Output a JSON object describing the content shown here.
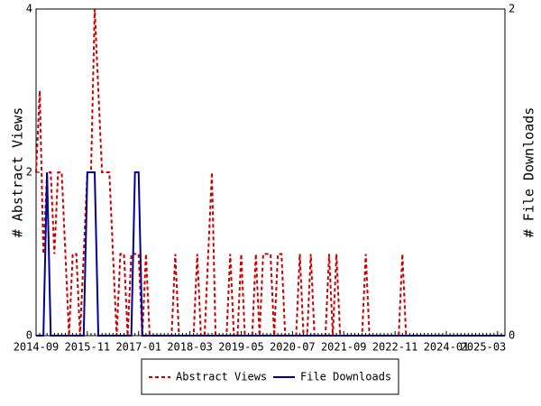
{
  "chart_data": {
    "type": "line",
    "x": [
      "2014-09",
      null,
      null,
      null,
      null,
      null,
      null,
      null,
      null,
      null,
      null,
      null,
      null,
      null,
      "2015-11",
      null,
      null,
      null,
      null,
      null,
      null,
      null,
      null,
      null,
      null,
      null,
      null,
      null,
      "2017-01",
      null,
      null,
      null,
      null,
      null,
      null,
      null,
      null,
      null,
      null,
      null,
      null,
      null,
      "2018-03",
      null,
      null,
      null,
      null,
      null,
      null,
      null,
      null,
      null,
      null,
      null,
      null,
      null,
      "2019-05",
      null,
      null,
      null,
      null,
      null,
      null,
      null,
      null,
      null,
      null,
      null,
      null,
      null,
      "2020-07",
      null,
      null,
      null,
      null,
      null,
      null,
      null,
      null,
      null,
      null,
      null,
      null,
      null,
      "2021-09",
      null,
      null,
      null,
      null,
      null,
      null,
      null,
      null,
      null,
      null,
      null,
      null,
      null,
      "2022-11",
      null,
      null,
      null,
      null,
      null,
      null,
      null,
      null,
      null,
      null,
      null,
      null,
      null,
      "2024-01",
      null,
      null,
      null,
      null,
      null,
      null,
      null,
      null,
      null,
      null,
      null,
      null,
      null,
      "2025-03",
      null,
      null
    ],
    "ylabel": "# Abstract Views",
    "y2label": "# File Downloads",
    "ylim": [
      0,
      4
    ],
    "yticks": [
      0,
      2,
      4
    ],
    "y2lim": [
      0,
      2
    ],
    "y2ticks": [
      0,
      2
    ],
    "legend": "bottom",
    "series": [
      {
        "name": "Abstract Views",
        "color": "#cc0000",
        "dashed": true,
        "values": [
          2,
          3,
          1,
          2,
          2,
          1,
          2,
          2,
          1,
          0,
          1,
          1,
          0,
          1,
          2,
          2,
          4,
          3,
          2,
          2,
          2,
          1,
          0,
          1,
          1,
          0,
          1,
          1,
          1,
          0,
          1,
          0,
          0,
          0,
          0,
          0,
          0,
          0,
          1,
          0,
          0,
          0,
          0,
          0,
          1,
          0,
          0,
          1,
          2,
          0,
          0,
          0,
          0,
          1,
          0,
          0,
          1,
          0,
          0,
          0,
          1,
          0,
          1,
          1,
          1,
          0,
          1,
          1,
          0,
          0,
          0,
          0,
          1,
          0,
          0,
          1,
          0,
          0,
          0,
          0,
          1,
          0,
          1,
          0,
          0,
          0,
          0,
          0,
          0,
          0,
          1,
          0,
          0,
          0,
          0,
          0,
          0,
          0,
          0,
          0,
          1,
          0,
          0,
          0,
          0,
          0,
          0,
          0,
          0,
          0,
          0,
          0,
          0,
          0,
          0,
          0,
          0,
          0,
          0,
          0,
          0,
          0,
          0,
          0,
          0,
          0,
          0,
          0,
          0
        ]
      },
      {
        "name": "File Downloads",
        "color": "#000099",
        "axis": "y2",
        "values": [
          0,
          0,
          0,
          1,
          0,
          0,
          0,
          0,
          0,
          0,
          0,
          0,
          0,
          0,
          1,
          1,
          1,
          0,
          0,
          0,
          0,
          0,
          0,
          0,
          0,
          0,
          0,
          1,
          1,
          0,
          0,
          0,
          0,
          0,
          0,
          0,
          0,
          0,
          0,
          0,
          0,
          0,
          0,
          0,
          0,
          0,
          0,
          0,
          0,
          0,
          0,
          0,
          0,
          0,
          0,
          0,
          0,
          0,
          0,
          0,
          0,
          0,
          0,
          0,
          0,
          0,
          0,
          0,
          0,
          0,
          0,
          0,
          0,
          0,
          0,
          0,
          0,
          0,
          0,
          0,
          0,
          0,
          0,
          0,
          0,
          0,
          0,
          0,
          0,
          0,
          0,
          0,
          0,
          0,
          0,
          0,
          0,
          0,
          0,
          0,
          0,
          0,
          0,
          0,
          0,
          0,
          0,
          0,
          0,
          0,
          0,
          0,
          0,
          0,
          0,
          0,
          0,
          0,
          0,
          0,
          0,
          0,
          0,
          0,
          0,
          0,
          0,
          0,
          0
        ]
      }
    ]
  }
}
